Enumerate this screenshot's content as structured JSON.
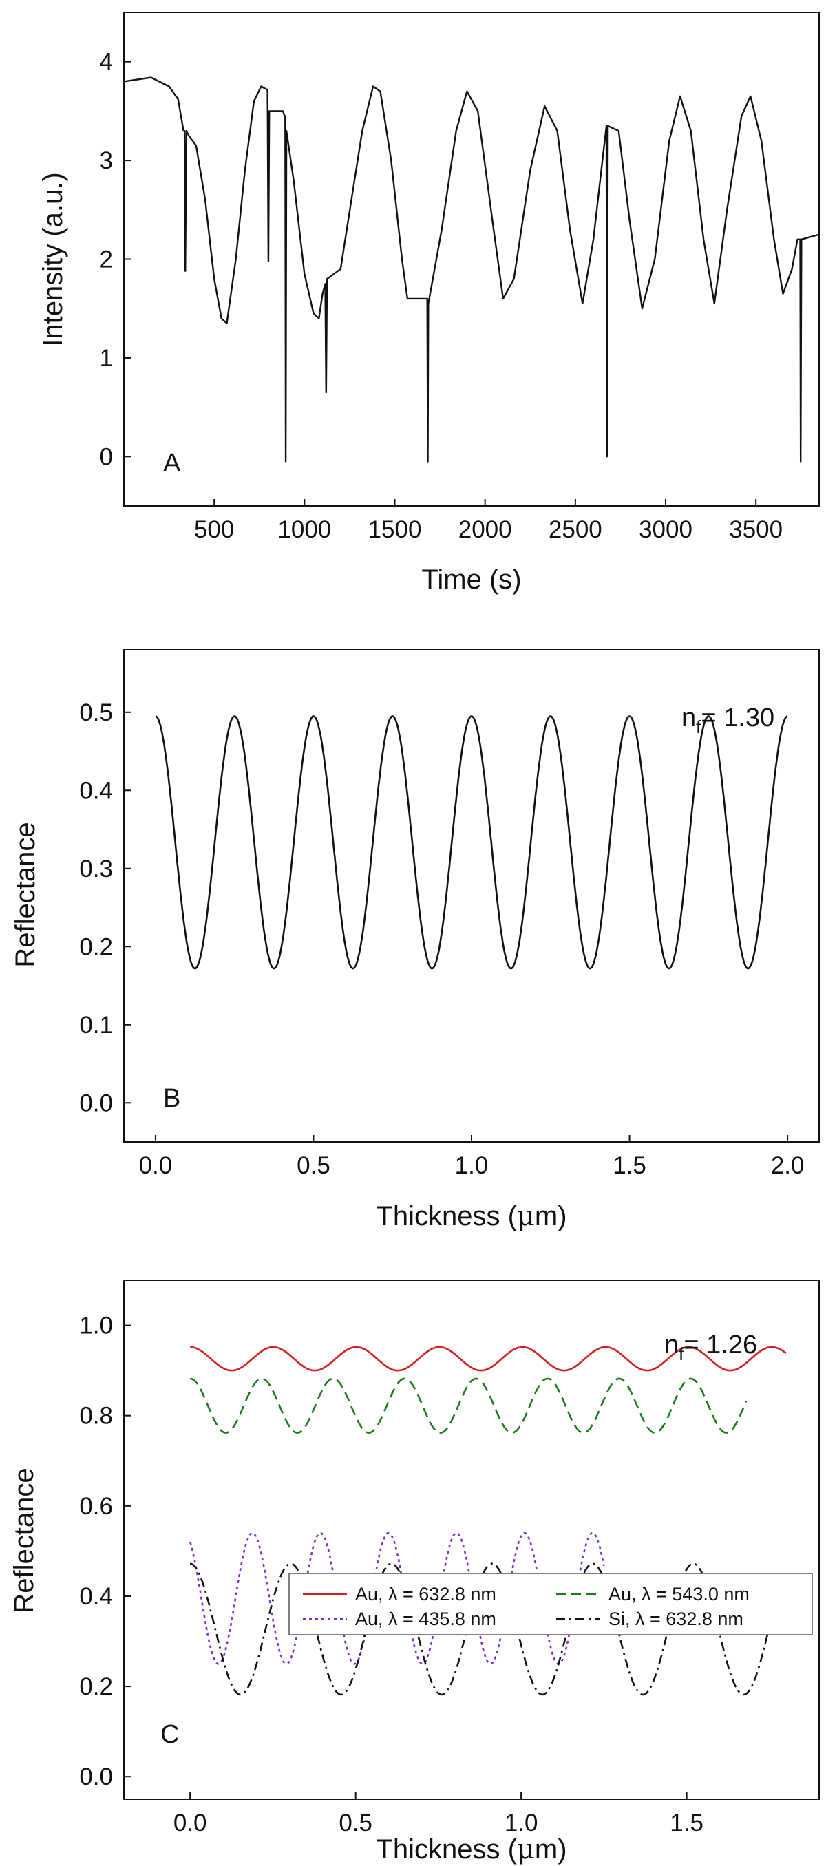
{
  "figure": {
    "panels": [
      "A",
      "B",
      "C"
    ]
  },
  "chart_data": [
    {
      "type": "line",
      "panel_label": "A",
      "xlabel": "Time (s)",
      "ylabel": "Intensity (a.u.)",
      "xlim": [
        0,
        3850
      ],
      "ylim": [
        -0.5,
        4.5
      ],
      "xticks": [
        500,
        1000,
        1500,
        2000,
        2500,
        3000,
        3500
      ],
      "yticks": [
        0,
        1,
        2,
        3,
        4
      ],
      "series": [
        {
          "name": "Intensity",
          "color": "#111111",
          "style": "solid",
          "points": [
            [
              0,
              3.8
            ],
            [
              150,
              3.84
            ],
            [
              250,
              3.75
            ],
            [
              300,
              3.62
            ],
            [
              330,
              3.3
            ],
            [
              336,
              3.3
            ],
            [
              340,
              1.88
            ],
            [
              346,
              3.3
            ],
            [
              360,
              3.25
            ],
            [
              400,
              3.15
            ],
            [
              450,
              2.6
            ],
            [
              500,
              1.8
            ],
            [
              540,
              1.4
            ],
            [
              570,
              1.35
            ],
            [
              620,
              2.0
            ],
            [
              670,
              2.9
            ],
            [
              720,
              3.6
            ],
            [
              760,
              3.75
            ],
            [
              790,
              3.72
            ],
            [
              795,
              3.72
            ],
            [
              800,
              1.98
            ],
            [
              805,
              3.5
            ],
            [
              840,
              3.5
            ],
            [
              880,
              3.5
            ],
            [
              890,
              3.45
            ],
            [
              893,
              3.45
            ],
            [
              896,
              -0.05
            ],
            [
              900,
              3.3
            ],
            [
              940,
              2.8
            ],
            [
              1000,
              1.85
            ],
            [
              1050,
              1.45
            ],
            [
              1080,
              1.4
            ],
            [
              1100,
              1.65
            ],
            [
              1115,
              1.75
            ],
            [
              1120,
              0.65
            ],
            [
              1125,
              1.8
            ],
            [
              1200,
              1.9
            ],
            [
              1260,
              2.6
            ],
            [
              1320,
              3.3
            ],
            [
              1380,
              3.75
            ],
            [
              1420,
              3.7
            ],
            [
              1480,
              3.0
            ],
            [
              1540,
              2.0
            ],
            [
              1570,
              1.6
            ],
            [
              1620,
              1.6
            ],
            [
              1680,
              1.6
            ],
            [
              1683,
              -0.05
            ],
            [
              1686,
              1.55
            ],
            [
              1760,
              2.3
            ],
            [
              1840,
              3.3
            ],
            [
              1900,
              3.7
            ],
            [
              1960,
              3.5
            ],
            [
              2040,
              2.4
            ],
            [
              2100,
              1.6
            ],
            [
              2160,
              1.8
            ],
            [
              2250,
              2.9
            ],
            [
              2330,
              3.55
            ],
            [
              2400,
              3.3
            ],
            [
              2470,
              2.3
            ],
            [
              2540,
              1.55
            ],
            [
              2600,
              2.2
            ],
            [
              2650,
              3.0
            ],
            [
              2672,
              3.35
            ],
            [
              2675,
              0.0
            ],
            [
              2680,
              3.35
            ],
            [
              2740,
              3.3
            ],
            [
              2800,
              2.4
            ],
            [
              2870,
              1.5
            ],
            [
              2940,
              2.0
            ],
            [
              3020,
              3.2
            ],
            [
              3080,
              3.65
            ],
            [
              3140,
              3.3
            ],
            [
              3210,
              2.2
            ],
            [
              3270,
              1.55
            ],
            [
              3340,
              2.5
            ],
            [
              3420,
              3.45
            ],
            [
              3470,
              3.65
            ],
            [
              3530,
              3.2
            ],
            [
              3600,
              2.2
            ],
            [
              3650,
              1.65
            ],
            [
              3700,
              1.9
            ],
            [
              3730,
              2.2
            ],
            [
              3745,
              2.2
            ],
            [
              3748,
              -0.05
            ],
            [
              3752,
              2.2
            ],
            [
              3850,
              2.25
            ]
          ]
        }
      ]
    },
    {
      "type": "line",
      "panel_label": "B",
      "annotation": {
        "prefix": "n",
        "subscript": "f",
        "suffix": "= 1.30"
      },
      "xlabel_prefix": "Thickness (",
      "xlabel_mu": "μ",
      "xlabel_suffix": "m)",
      "ylabel": "Reflectance",
      "xlim": [
        -0.1,
        2.1
      ],
      "ylim": [
        -0.05,
        0.58
      ],
      "xticks": [
        0.0,
        0.5,
        1.0,
        1.5,
        2.0
      ],
      "xtick_labels": [
        "0.0",
        "0.5",
        "1.0",
        "1.5",
        "2.0"
      ],
      "yticks": [
        0.0,
        0.1,
        0.2,
        0.3,
        0.4,
        0.5
      ],
      "ytick_labels": [
        "0.0",
        "0.1",
        "0.2",
        "0.3",
        "0.4",
        "0.5"
      ],
      "series": [
        {
          "name": "Reflectance",
          "color": "#111111",
          "style": "solid",
          "period": 0.25,
          "min": 0.172,
          "max": 0.495,
          "x_range": [
            0.0,
            2.0
          ]
        }
      ]
    },
    {
      "type": "line",
      "panel_label": "C",
      "annotation": {
        "prefix": "n",
        "subscript": "f",
        "suffix": "= 1.26"
      },
      "xlabel_prefix": "Thickness (",
      "xlabel_mu": "μ",
      "xlabel_suffix": "m)",
      "ylabel": "Reflectance",
      "xlim": [
        -0.2,
        1.9
      ],
      "ylim": [
        -0.05,
        1.1
      ],
      "xticks": [
        0.0,
        0.5,
        1.0,
        1.5
      ],
      "xtick_labels": [
        "0.0",
        "0.5",
        "1.0",
        "1.5"
      ],
      "yticks": [
        0.0,
        0.2,
        0.4,
        0.6,
        0.8,
        1.0
      ],
      "ytick_labels": [
        "0.0",
        "0.2",
        "0.4",
        "0.6",
        "0.8",
        "1.0"
      ],
      "legend_position": "middle-right",
      "series": [
        {
          "name": "Au, λ = 632.8 nm",
          "color": "#d42020",
          "style": "solid",
          "period": 0.251,
          "min": 0.9,
          "max": 0.952,
          "x_range": [
            0.0,
            1.8
          ]
        },
        {
          "name": "Au, λ = 543.0 nm",
          "color": "#1d7a1d",
          "style": "dashed",
          "period": 0.216,
          "min": 0.762,
          "max": 0.882,
          "x_range": [
            0.0,
            1.68
          ]
        },
        {
          "name": "Au, λ = 435.8 nm",
          "color": "#7b2fd6",
          "style": "dotted",
          "period": 0.2055,
          "min": 0.25,
          "max": 0.54,
          "x_range": [
            0.0,
            1.25
          ],
          "start": 0.52
        },
        {
          "name": "Si,  λ = 632.8 nm",
          "color": "#111111",
          "style": "dashdot",
          "period": 0.304,
          "min": 0.182,
          "max": 0.472,
          "x_range": [
            0.0,
            1.8
          ]
        }
      ]
    }
  ]
}
